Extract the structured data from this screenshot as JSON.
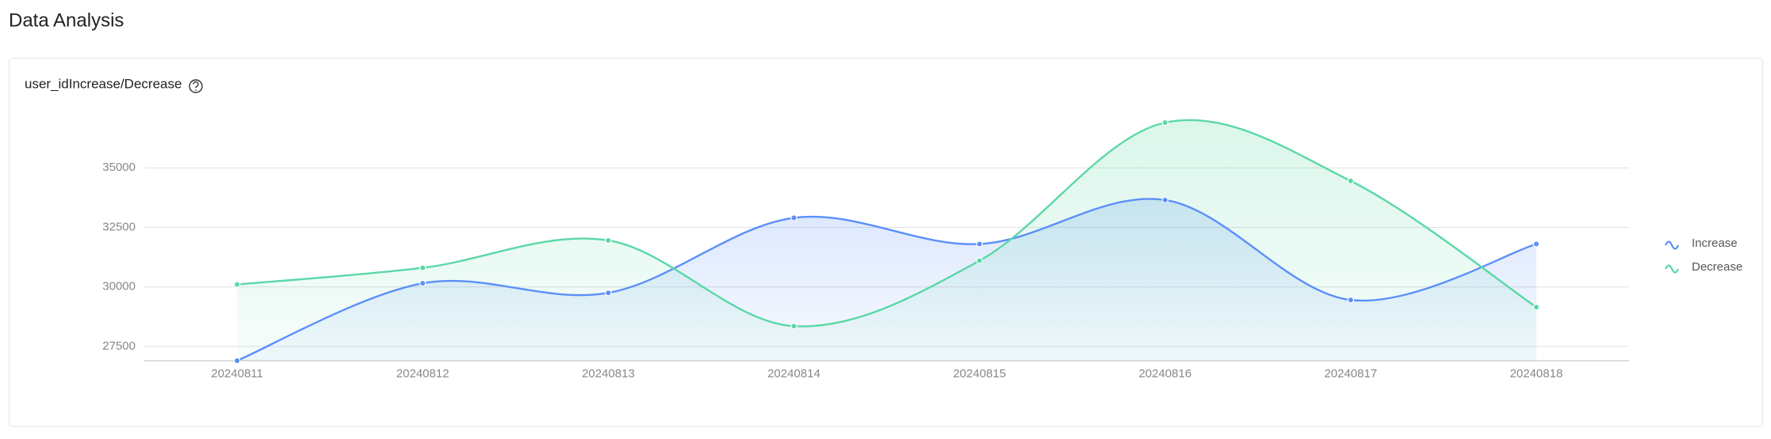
{
  "page_title": "Data Analysis",
  "chart_data": {
    "type": "line",
    "title": "user_idIncrease/Decrease",
    "categories": [
      "20240811",
      "20240812",
      "20240813",
      "20240814",
      "20240815",
      "20240816",
      "20240817",
      "20240818"
    ],
    "series": [
      {
        "name": "Increase",
        "color": "#5b8ff9",
        "values": [
          26900,
          30150,
          29750,
          32900,
          31800,
          33650,
          29450,
          31800
        ]
      },
      {
        "name": "Decrease",
        "color": "#5ad8a6",
        "values": [
          30100,
          30800,
          31950,
          28350,
          31100,
          36900,
          34450,
          29150
        ]
      }
    ],
    "ylim": [
      26900,
      36900
    ],
    "yticks": [
      27500,
      30000,
      32500,
      35000
    ],
    "grid": true,
    "smooth": true,
    "area": true,
    "legend": "right"
  }
}
